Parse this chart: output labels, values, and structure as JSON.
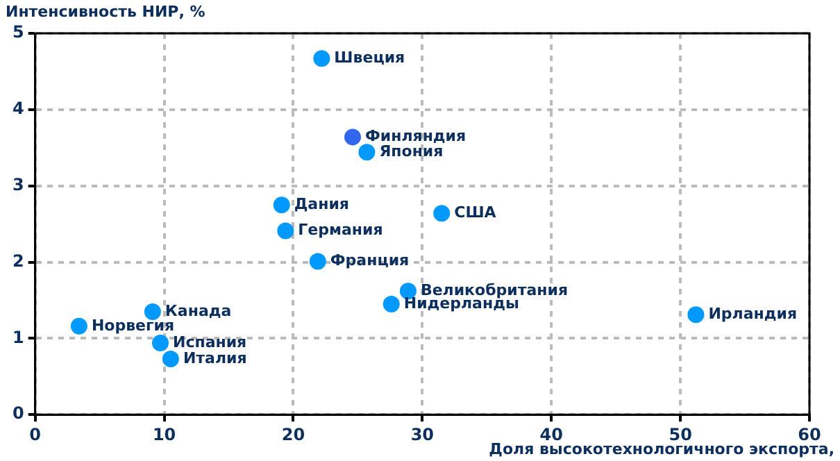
{
  "chart_data": {
    "type": "scatter",
    "ylabel": "Интенсивность НИР, %",
    "xlabel": "Доля высокотехнологичного экспорта,",
    "x": [
      22.2,
      24.6,
      25.7,
      19.1,
      19.4,
      31.5,
      21.9,
      28.9,
      27.6,
      51.2,
      9.1,
      3.4,
      9.7,
      10.5
    ],
    "values": [
      4.67,
      3.64,
      3.44,
      2.75,
      2.41,
      2.64,
      2.01,
      1.62,
      1.45,
      1.31,
      1.35,
      1.16,
      0.94,
      0.73
    ],
    "colors": [
      "#0099ff",
      "#3366ee",
      "#0099ff",
      "#0099ff",
      "#0099ff",
      "#0099ff",
      "#0099ff",
      "#0099ff",
      "#0099ff",
      "#0099ff",
      "#0099ff",
      "#0099ff",
      "#0099ff",
      "#0099ff"
    ],
    "annotations": [
      {
        "text": "Швеция",
        "x": 22.2,
        "y": 4.67
      },
      {
        "text": "Финляндия",
        "x": 24.6,
        "y": 3.64
      },
      {
        "text": "Япония",
        "x": 25.7,
        "y": 3.44
      },
      {
        "text": "Дания",
        "x": 19.1,
        "y": 2.75
      },
      {
        "text": "Германия",
        "x": 19.4,
        "y": 2.41
      },
      {
        "text": "США",
        "x": 31.5,
        "y": 2.64
      },
      {
        "text": "Франция",
        "x": 21.9,
        "y": 2.01
      },
      {
        "text": "Великобритания",
        "x": 28.9,
        "y": 1.62
      },
      {
        "text": "Нидерланды",
        "x": 27.6,
        "y": 1.45
      },
      {
        "text": "Ирландия",
        "x": 51.2,
        "y": 1.31
      },
      {
        "text": "Канада",
        "x": 9.1,
        "y": 1.35
      },
      {
        "text": "Норвегия",
        "x": 3.4,
        "y": 1.16
      },
      {
        "text": "Испания",
        "x": 9.7,
        "y": 0.94
      },
      {
        "text": "Италия",
        "x": 10.5,
        "y": 0.73
      }
    ],
    "xlim": [
      0,
      60
    ],
    "xticks": [
      0,
      10,
      20,
      30,
      40,
      50,
      60
    ],
    "ylim": [
      0,
      5
    ],
    "yticks": [
      0,
      1,
      2,
      3,
      4,
      5
    ],
    "grid": true,
    "legend": false,
    "marker": "circle"
  }
}
